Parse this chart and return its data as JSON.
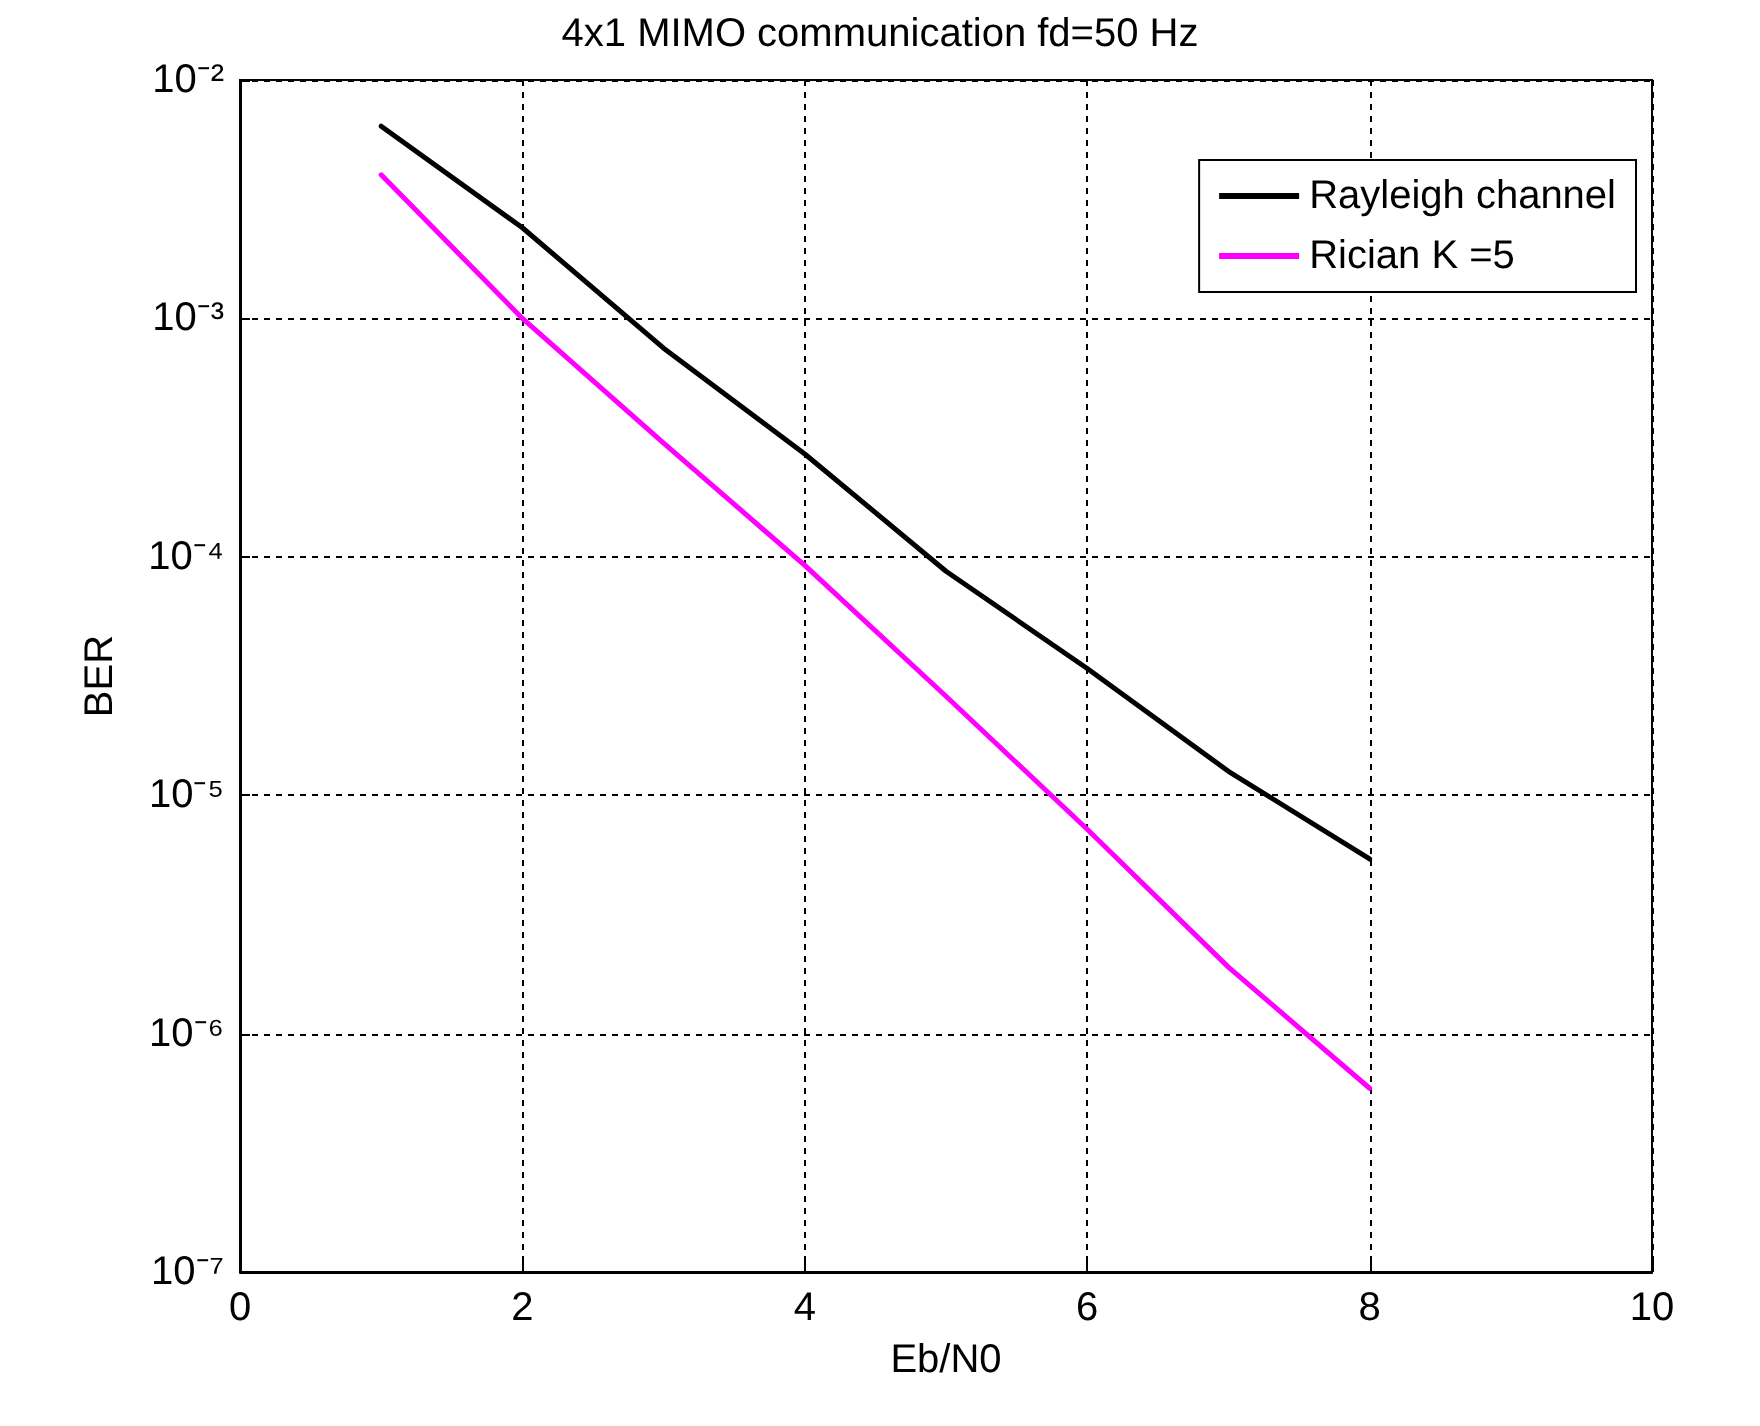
{
  "chart_data": {
    "type": "line",
    "title": "4x1 MIMO communication fd=50 Hz",
    "xlabel": "Eb/N0",
    "ylabel": "BER",
    "x": [
      1,
      2,
      3,
      4,
      5,
      6,
      7,
      8
    ],
    "series": [
      {
        "name": "Rayleigh channel",
        "color": "#000000",
        "values": [
          0.0064,
          0.0024,
          0.00075,
          0.00027,
          8.7e-05,
          3.4e-05,
          1.26e-05,
          5.4e-06
        ]
      },
      {
        "name": "Rician K =5",
        "color": "#ff00ff",
        "values": [
          0.004,
          0.001,
          0.0003,
          9.2e-05,
          2.6e-05,
          7.2e-06,
          1.9e-06,
          5.9e-07
        ]
      }
    ],
    "xlim": [
      0,
      10
    ],
    "xticks": [
      0,
      2,
      4,
      6,
      8,
      10
    ],
    "ylim": [
      1e-07,
      0.01
    ],
    "yticks": [
      {
        "value": 1e-07,
        "label": "10⁻⁷"
      },
      {
        "value": 1e-06,
        "label": "10⁻⁶"
      },
      {
        "value": 1e-05,
        "label": "10⁻⁵"
      },
      {
        "value": 0.0001,
        "label": "10⁻⁴"
      },
      {
        "value": 0.001,
        "label": "10⁻³"
      },
      {
        "value": 0.01,
        "label": "10⁻²"
      }
    ],
    "log": "y",
    "grid": true,
    "legend": "top right",
    "marker": "none",
    "line_style": "solid"
  }
}
